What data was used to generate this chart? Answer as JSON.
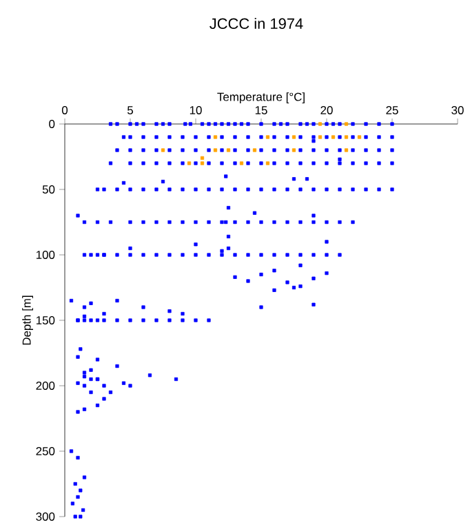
{
  "chart_data": {
    "type": "scatter",
    "title": "JCCC in 1974",
    "xlabel": "Temperature [°C]",
    "ylabel": "Depth [m]",
    "xlim": [
      0,
      30
    ],
    "ylim": [
      300,
      0
    ],
    "xticks": [
      0,
      5,
      10,
      15,
      20,
      25,
      30
    ],
    "yticks": [
      0,
      50,
      100,
      150,
      200,
      250,
      300
    ],
    "marker": "square",
    "series": [
      {
        "color": "#0000ff",
        "x": [
          3.5,
          4,
          5,
          5.5,
          6,
          7,
          7.5,
          8,
          9.2,
          9.6,
          10.5,
          11,
          11.5,
          12,
          12.5,
          13,
          13.5,
          14,
          15,
          16,
          16.5,
          17,
          18,
          18.5,
          19,
          20,
          20.5,
          21,
          22,
          23,
          24,
          25,
          4.5,
          5,
          6,
          7,
          8,
          9,
          10,
          11,
          12,
          13,
          14,
          15,
          16,
          17,
          18,
          19,
          20,
          21,
          22,
          23,
          24,
          25,
          4,
          5,
          6,
          7,
          8,
          9,
          10,
          11,
          12,
          13,
          14,
          15,
          16,
          17,
          18,
          19,
          20,
          21,
          22,
          23,
          24,
          25,
          3.5,
          5,
          6,
          7,
          8,
          9,
          10,
          11,
          12,
          13,
          14,
          15,
          16,
          17,
          18,
          19,
          20,
          21,
          22,
          23,
          24,
          25,
          19,
          21,
          2.5,
          3,
          4,
          5,
          6,
          7,
          8,
          9,
          10,
          11,
          12,
          13,
          14,
          15,
          16,
          17,
          18,
          19,
          20,
          21,
          22,
          23,
          24,
          25,
          4.5,
          7.5,
          12.3,
          17.5,
          18.5,
          1.5,
          2.5,
          3.5,
          5,
          6,
          7,
          8,
          9,
          10,
          11,
          12,
          13,
          14,
          15,
          16,
          17,
          18,
          19,
          20,
          21,
          22,
          12.3,
          12.5,
          14.5,
          19,
          1,
          1.5,
          2,
          2.5,
          3,
          4,
          5,
          6,
          7,
          8,
          9,
          10,
          11,
          12,
          13,
          14,
          15,
          16,
          17,
          18,
          19,
          20,
          21,
          3,
          5,
          10,
          12.5,
          12.5,
          18,
          20,
          12,
          13,
          14,
          15,
          16,
          17,
          17.5,
          18,
          19,
          20,
          16,
          15,
          19,
          0.5,
          1,
          1.5,
          2,
          2.5,
          3,
          4,
          5,
          6,
          7,
          8,
          9,
          10,
          11,
          1,
          1.5,
          2,
          3,
          4,
          6,
          8,
          9,
          1.5,
          1.2,
          2.5,
          1,
          1.5,
          2,
          2.5,
          3,
          4,
          5,
          1,
          1.5,
          2,
          2.5,
          3,
          3.5,
          4.5,
          6.5,
          8.5,
          1.5,
          2,
          2.5,
          1,
          1.5,
          0.5,
          1,
          1.5,
          0.8,
          1.2,
          1,
          0.6,
          1.4,
          0.8,
          1.2
        ],
        "values": [
          0,
          0,
          0,
          0,
          0,
          0,
          0,
          0,
          0,
          0,
          0,
          0,
          0,
          0,
          0,
          0,
          0,
          0,
          0,
          0,
          0,
          0,
          0,
          0,
          0,
          0,
          0,
          0,
          0,
          0,
          0,
          0,
          10,
          10,
          10,
          10,
          10,
          10,
          10,
          10,
          10,
          10,
          10,
          10,
          10,
          10,
          10,
          10,
          10,
          10,
          10,
          10,
          10,
          10,
          20,
          20,
          20,
          20,
          20,
          20,
          20,
          20,
          20,
          20,
          20,
          20,
          20,
          20,
          20,
          20,
          20,
          20,
          20,
          20,
          20,
          20,
          30,
          30,
          30,
          30,
          30,
          30,
          30,
          30,
          30,
          30,
          30,
          30,
          30,
          30,
          30,
          30,
          30,
          30,
          30,
          30,
          30,
          30,
          13,
          27,
          50,
          50,
          50,
          50,
          50,
          50,
          50,
          50,
          50,
          50,
          50,
          50,
          50,
          50,
          50,
          50,
          50,
          50,
          50,
          50,
          50,
          50,
          50,
          50,
          45,
          44,
          40,
          42,
          42,
          75,
          75,
          75,
          75,
          75,
          75,
          75,
          75,
          75,
          75,
          75,
          75,
          75,
          75,
          75,
          75,
          75,
          75,
          75,
          75,
          75,
          75,
          64,
          68,
          70,
          70,
          100,
          100,
          100,
          100,
          100,
          100,
          100,
          100,
          100,
          100,
          100,
          100,
          100,
          100,
          100,
          100,
          100,
          100,
          100,
          100,
          100,
          100,
          100,
          95,
          92,
          95,
          86,
          108,
          90,
          97,
          117,
          120,
          115,
          127,
          121,
          125,
          124,
          118,
          114,
          112,
          140,
          138,
          135,
          150,
          150,
          150,
          150,
          150,
          150,
          150,
          150,
          150,
          150,
          150,
          150,
          150,
          150,
          140,
          137,
          145,
          135,
          140,
          143,
          145,
          147,
          172,
          180,
          178,
          190,
          188,
          195,
          200,
          185,
          200,
          198,
          200,
          205,
          195,
          210,
          205,
          198,
          192,
          195,
          193,
          195,
          215,
          220,
          218,
          250,
          255,
          270,
          275,
          280,
          285,
          290,
          295,
          300,
          300
        ]
      },
      {
        "color": "#ffa500",
        "x": [
          19.5,
          21.5,
          11.5,
          15.5,
          17.5,
          19.5,
          20.5,
          21.5,
          22.5,
          7.5,
          11.5,
          12.5,
          14.5,
          17.5,
          21.5,
          9.5,
          10.5,
          10.5,
          13.5,
          15.5
        ],
        "values": [
          0,
          0,
          10,
          10,
          10,
          10,
          10,
          10,
          10,
          20,
          20,
          20,
          20,
          20,
          20,
          30,
          30,
          26,
          30,
          30
        ]
      }
    ]
  }
}
